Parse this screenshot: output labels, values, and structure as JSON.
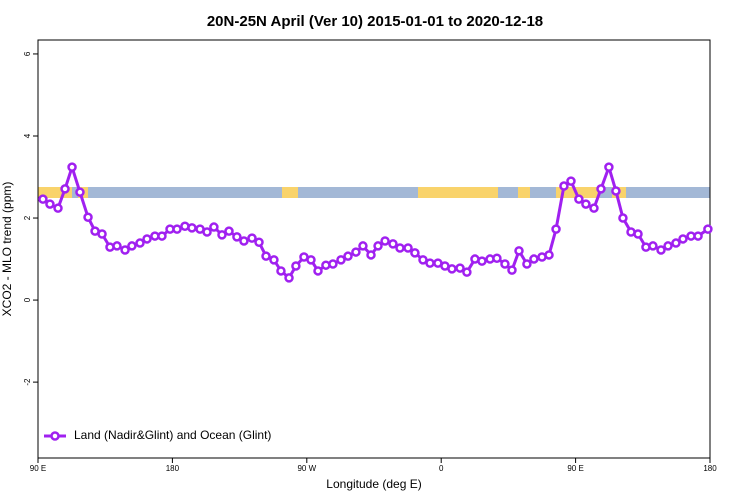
{
  "chart_data": {
    "type": "line",
    "title": "20N-25N April (Ver 10)   2015-01-01 to 2020-12-18",
    "x_label": "Longitude (deg E)",
    "y_label": "XCO2 - MLO trend (ppm)",
    "xlim": [
      90,
      540
    ],
    "ylim": [
      -3.85,
      6.34
    ],
    "xticks": [
      {
        "value": 90,
        "label": "90 E"
      },
      {
        "value": 180,
        "label": "180"
      },
      {
        "value": 270,
        "label": "90 W"
      },
      {
        "value": 360,
        "label": "0"
      },
      {
        "value": 450,
        "label": "90 E"
      },
      {
        "value": 540,
        "label": "180"
      }
    ],
    "yticks": [
      -2,
      0,
      2,
      4,
      6
    ],
    "legend": "bottom-left",
    "x": [
      93.3,
      98.0,
      103.4,
      108.1,
      112.8,
      118.1,
      123.5,
      128.2,
      132.9,
      138.2,
      142.9,
      148.3,
      152.9,
      158.3,
      163.0,
      168.3,
      173.0,
      178.4,
      183.1,
      188.4,
      193.1,
      198.5,
      203.2,
      207.8,
      213.2,
      217.9,
      223.2,
      227.9,
      233.3,
      238.0,
      242.7,
      248.0,
      252.7,
      258.1,
      262.7,
      268.1,
      272.8,
      277.5,
      282.8,
      287.5,
      292.9,
      297.6,
      302.9,
      307.6,
      313.0,
      317.7,
      322.4,
      327.7,
      332.4,
      337.8,
      342.4,
      347.8,
      352.5,
      357.8,
      362.5,
      367.2,
      372.6,
      377.2,
      382.6,
      387.3,
      392.7,
      397.3,
      402.7,
      407.4,
      412.1,
      417.4,
      422.1,
      427.5,
      432.2,
      436.9,
      442.2,
      446.9,
      452.2,
      456.9,
      462.3,
      467.0,
      472.3,
      477.0,
      481.7,
      487.1,
      491.8,
      497.1,
      501.8,
      507.2,
      511.9,
      517.2,
      521.9,
      527.3,
      532.0,
      538.6
    ],
    "series": [
      {
        "name": "Land (Nadir&Glint) and Ocean (Glint)",
        "color": "#a020f0",
        "values": [
          2.46,
          2.34,
          2.24,
          2.71,
          3.24,
          2.63,
          2.02,
          1.68,
          1.61,
          1.29,
          1.32,
          1.22,
          1.32,
          1.39,
          1.49,
          1.56,
          1.56,
          1.73,
          1.73,
          1.8,
          1.76,
          1.73,
          1.66,
          1.78,
          1.59,
          1.68,
          1.54,
          1.44,
          1.51,
          1.41,
          1.07,
          0.98,
          0.71,
          0.54,
          0.83,
          1.05,
          0.98,
          0.71,
          0.85,
          0.88,
          0.98,
          1.07,
          1.17,
          1.32,
          1.1,
          1.32,
          1.44,
          1.37,
          1.27,
          1.27,
          1.15,
          0.98,
          0.9,
          0.9,
          0.83,
          0.76,
          0.78,
          0.68,
          1.0,
          0.95,
          1.0,
          1.02,
          0.88,
          0.73,
          1.2,
          0.88,
          1.0,
          1.05,
          1.1,
          1.73,
          2.78,
          2.9,
          2.46,
          2.34,
          2.24,
          2.71,
          3.24,
          2.66,
          2.0,
          1.66,
          1.61,
          1.29,
          1.32,
          1.22,
          1.32,
          1.39,
          1.49,
          1.56,
          1.56,
          1.73
        ]
      }
    ]
  }
}
